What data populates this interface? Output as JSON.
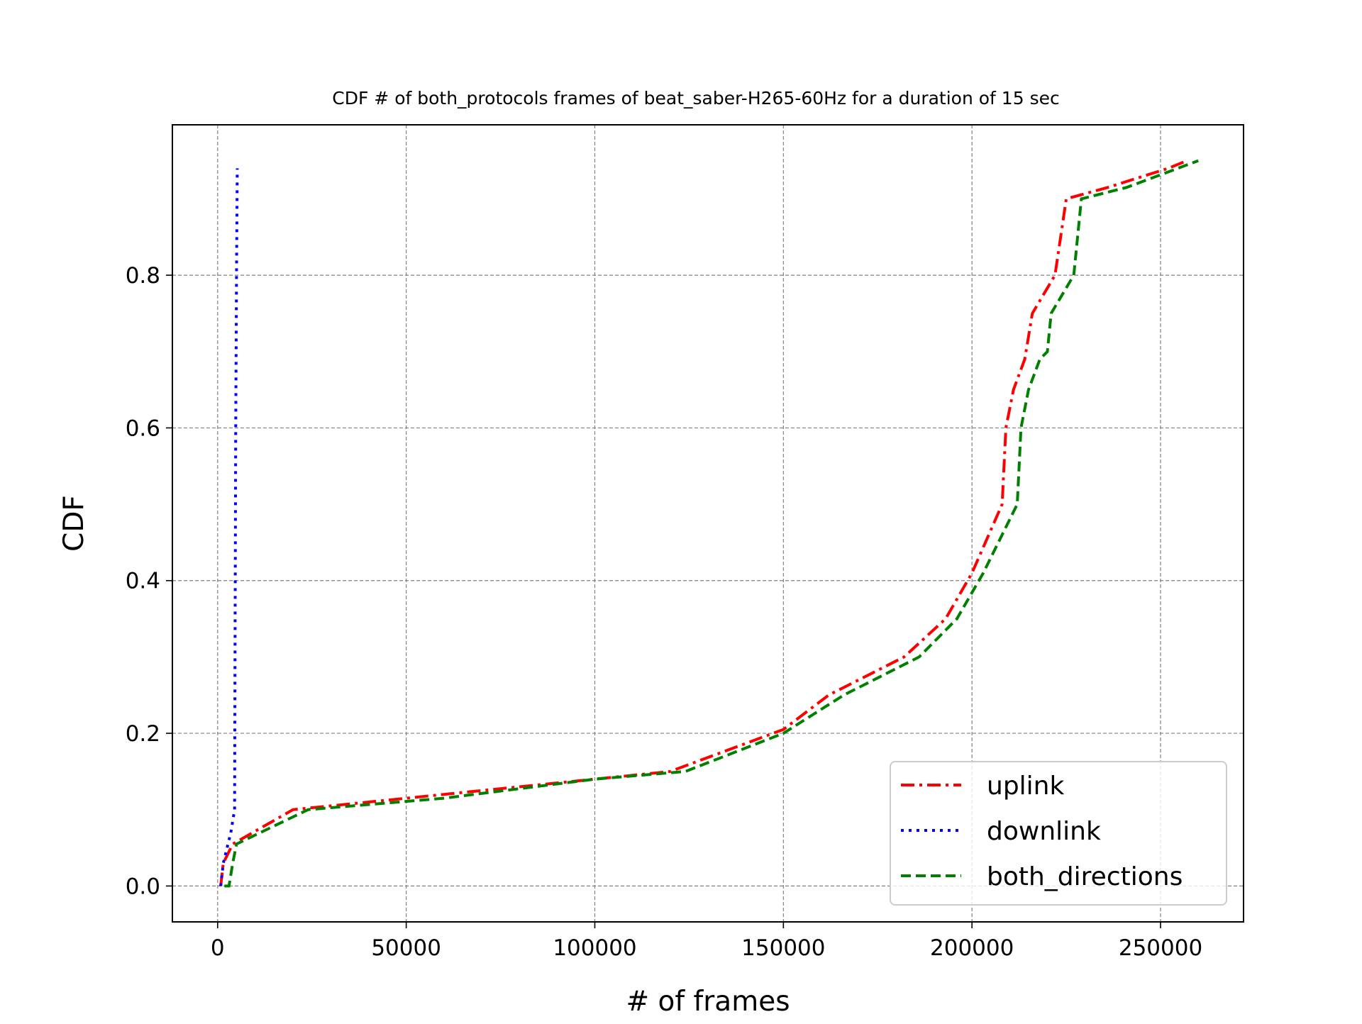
{
  "chart_data": {
    "type": "line",
    "title": "CDF # of both_protocols frames of beat_saber-H265-60Hz for a duration of 15 sec",
    "xlabel": "# of frames",
    "ylabel": "CDF",
    "xlim": [
      -12000,
      272000
    ],
    "ylim": [
      -0.047,
      0.997
    ],
    "xticks": [
      0,
      50000,
      100000,
      150000,
      200000,
      250000
    ],
    "xtick_labels": [
      "0",
      "50000",
      "100000",
      "150000",
      "200000",
      "250000"
    ],
    "yticks": [
      0.0,
      0.2,
      0.4,
      0.6,
      0.8
    ],
    "ytick_labels": [
      "0.0",
      "0.2",
      "0.4",
      "0.6",
      "0.8"
    ],
    "grid": true,
    "legend_position": "lower-right",
    "series": [
      {
        "name": "uplink",
        "color": "#ff0000",
        "style": "dashdot",
        "x": [
          800,
          1500,
          4000,
          20000,
          30000,
          60000,
          90000,
          110000,
          120000,
          150000,
          162000,
          182000,
          193000,
          200000,
          208000,
          209000,
          211000,
          214000,
          216000,
          222000,
          225000,
          236000,
          252000,
          257000
        ],
        "y": [
          0.0,
          0.03,
          0.055,
          0.1,
          0.105,
          0.12,
          0.135,
          0.145,
          0.15,
          0.205,
          0.25,
          0.3,
          0.35,
          0.41,
          0.5,
          0.6,
          0.65,
          0.69,
          0.75,
          0.8,
          0.9,
          0.915,
          0.94,
          0.95
        ]
      },
      {
        "name": "downlink",
        "color": "#0000ff",
        "style": "dotted",
        "x": [
          800,
          1500,
          2500,
          3500,
          4500,
          4600,
          4800,
          5000,
          5200
        ],
        "y": [
          0.0,
          0.03,
          0.05,
          0.07,
          0.1,
          0.3,
          0.6,
          0.8,
          0.94
        ]
      },
      {
        "name": "both_directions",
        "color": "#008000",
        "style": "dashed",
        "x": [
          1800,
          3000,
          4000,
          5000,
          24000,
          60000,
          100000,
          124000,
          150000,
          166000,
          186000,
          196000,
          203000,
          209000,
          212000,
          213000,
          215000,
          218000,
          220000,
          221000,
          227000,
          229000,
          241000,
          260000
        ],
        "y": [
          0.0,
          0.0,
          0.03,
          0.055,
          0.1,
          0.115,
          0.14,
          0.15,
          0.2,
          0.25,
          0.3,
          0.35,
          0.41,
          0.47,
          0.5,
          0.6,
          0.65,
          0.69,
          0.7,
          0.75,
          0.8,
          0.9,
          0.915,
          0.95
        ]
      }
    ]
  }
}
